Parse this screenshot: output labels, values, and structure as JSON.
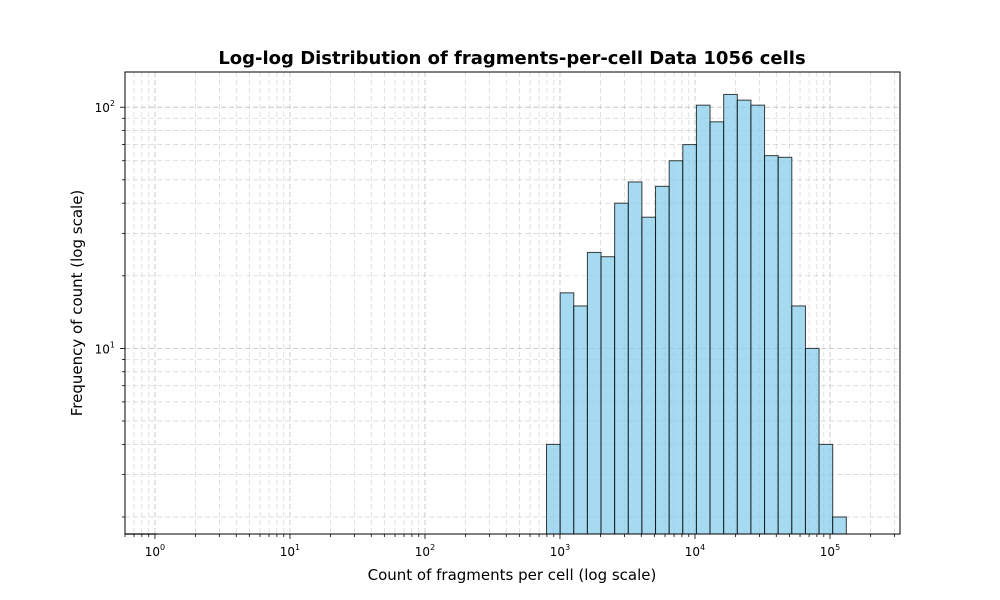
{
  "chart_data": {
    "type": "bar",
    "title": "Log-log Distribution of fragments-per-cell Data 1056 cells",
    "xlabel": "Count of fragments per cell (log scale)",
    "ylabel": "Frequency of count (log scale)",
    "x_scale": "log",
    "y_scale": "log",
    "xlim": [
      0.6,
      330000
    ],
    "ylim": [
      1.7,
      140
    ],
    "grid": true,
    "x_ticks": [
      {
        "value": 1,
        "base": "10",
        "exp": "0"
      },
      {
        "value": 10,
        "base": "10",
        "exp": "1"
      },
      {
        "value": 100,
        "base": "10",
        "exp": "2"
      },
      {
        "value": 1000,
        "base": "10",
        "exp": "3"
      },
      {
        "value": 10000,
        "base": "10",
        "exp": "4"
      },
      {
        "value": 100000,
        "base": "10",
        "exp": "5"
      }
    ],
    "y_ticks": [
      {
        "value": 10,
        "base": "10",
        "exp": "1"
      },
      {
        "value": 100,
        "base": "10",
        "exp": "2"
      }
    ],
    "bar_color": "#87ceeb",
    "edge_color": "#000000",
    "bins": [
      {
        "x0": 0.6,
        "x1": 1.03,
        "count": 0
      },
      {
        "x0": 795,
        "x1": 1003,
        "count": 4
      },
      {
        "x0": 1003,
        "x1": 1265,
        "count": 17
      },
      {
        "x0": 1265,
        "x1": 1596,
        "count": 15
      },
      {
        "x0": 1596,
        "x1": 2014,
        "count": 25
      },
      {
        "x0": 2014,
        "x1": 2541,
        "count": 24
      },
      {
        "x0": 2541,
        "x1": 3206,
        "count": 40
      },
      {
        "x0": 3206,
        "x1": 4045,
        "count": 49
      },
      {
        "x0": 4045,
        "x1": 5103,
        "count": 35
      },
      {
        "x0": 5103,
        "x1": 6438,
        "count": 47
      },
      {
        "x0": 6438,
        "x1": 8123,
        "count": 60
      },
      {
        "x0": 8123,
        "x1": 10248,
        "count": 70
      },
      {
        "x0": 10248,
        "x1": 12929,
        "count": 102
      },
      {
        "x0": 12929,
        "x1": 16312,
        "count": 87
      },
      {
        "x0": 16312,
        "x1": 20580,
        "count": 113
      },
      {
        "x0": 20580,
        "x1": 25964,
        "count": 107
      },
      {
        "x0": 25964,
        "x1": 32757,
        "count": 102
      },
      {
        "x0": 32757,
        "x1": 41328,
        "count": 63
      },
      {
        "x0": 41328,
        "x1": 52140,
        "count": 62
      },
      {
        "x0": 52140,
        "x1": 65781,
        "count": 15
      },
      {
        "x0": 65781,
        "x1": 82991,
        "count": 10
      },
      {
        "x0": 82991,
        "x1": 104704,
        "count": 4
      },
      {
        "x0": 104704,
        "x1": 132098,
        "count": 2
      }
    ]
  }
}
